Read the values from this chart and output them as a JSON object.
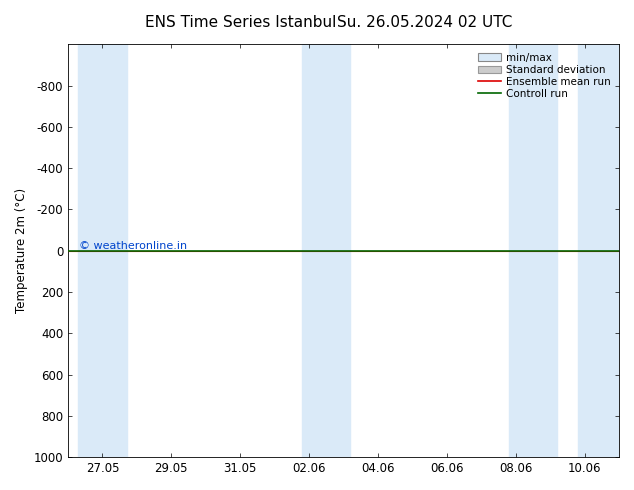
{
  "title_left": "ENS Time Series Istanbul",
  "title_right": "Su. 26.05.2024 02 UTC",
  "ylabel": "Temperature 2m (°C)",
  "ylim_bottom": 1000,
  "ylim_top": -1000,
  "yticks": [
    -800,
    -600,
    -400,
    -200,
    0,
    200,
    400,
    600,
    800,
    1000
  ],
  "xtick_labels": [
    "27.05",
    "29.05",
    "31.05",
    "02.06",
    "04.06",
    "06.06",
    "08.06",
    "10.06"
  ],
  "xlim": [
    0,
    16
  ],
  "xtick_positions": [
    1,
    3,
    5,
    7,
    9,
    11,
    13,
    15
  ],
  "watermark": "© weatheronline.in",
  "watermark_color": "#0044cc",
  "bg_color": "#ffffff",
  "plot_bg": "#ffffff",
  "shaded_color": "#daeaf8",
  "green_line_color": "#006600",
  "red_line_color": "#dd0000",
  "legend_labels": [
    "min/max",
    "Standard deviation",
    "Ensemble mean run",
    "Controll run"
  ],
  "minmax_line_color": "#888888",
  "minmax_fill_color": "#daeaf8",
  "std_fill_color": "#cccccc",
  "std_line_color": "#999999",
  "title_fontsize": 11,
  "axis_fontsize": 8.5,
  "shaded_bands": [
    [
      0.3,
      1.7
    ],
    [
      6.8,
      8.2
    ],
    [
      12.8,
      14.2
    ],
    [
      14.8,
      16.0
    ]
  ]
}
